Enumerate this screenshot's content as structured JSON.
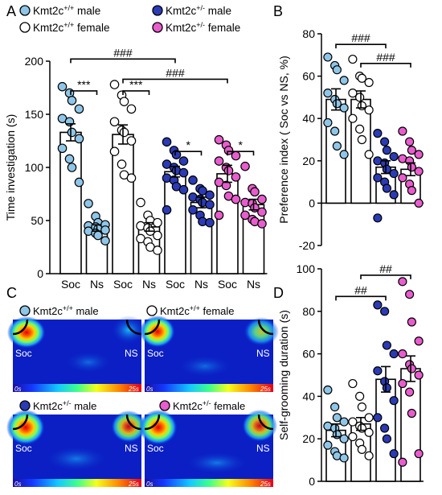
{
  "colors": {
    "wt_male": "#8fc6e8",
    "wt_female": "#ffffff",
    "het_male": "#2b3ab5",
    "het_female": "#e85ccd",
    "bar_fill": "#ffffff",
    "heatmap_low": "#0b1fc4",
    "heatmap_high": "#ff2a00"
  },
  "panels": {
    "A": "A",
    "B": "B",
    "C": "C",
    "D": "D"
  },
  "legend": {
    "items": [
      {
        "key": "wt_male",
        "base": "Kmt2c",
        "sup": "+/+",
        "suffix": " male"
      },
      {
        "key": "het_male",
        "base": "Kmt2c",
        "sup": "+/-",
        "suffix": " male"
      },
      {
        "key": "wt_female",
        "base": "Kmt2c",
        "sup": "+/+",
        "suffix": " female"
      },
      {
        "key": "het_female",
        "base": "Kmt2c",
        "sup": "+/-",
        "suffix": " female"
      }
    ]
  },
  "heatmap": {
    "soc_label": "Soc",
    "ns_label": "NS",
    "scale_min": "0s",
    "scale_max": "25s",
    "tiles": [
      {
        "key": "wt_male",
        "base": "Kmt2c",
        "sup": "+/+",
        "suffix": " male"
      },
      {
        "key": "wt_female",
        "base": "Kmt2c",
        "sup": "+/+",
        "suffix": " female"
      },
      {
        "key": "het_male",
        "base": "Kmt2c",
        "sup": "+/-",
        "suffix": " male"
      },
      {
        "key": "het_female",
        "base": "Kmt2c",
        "sup": "+/-",
        "suffix": " female"
      }
    ]
  },
  "chart_data": [
    {
      "panel": "A",
      "type": "bar",
      "ylabel": "Time investigation (s)",
      "ylim": [
        0,
        200
      ],
      "yticks": [
        0,
        50,
        100,
        150,
        200
      ],
      "categories": [
        "Soc",
        "Ns",
        "Soc",
        "Ns",
        "Soc",
        "Ns",
        "Soc",
        "Ns"
      ],
      "groups": [
        "wt_male",
        "wt_male",
        "wt_female",
        "wt_female",
        "het_male",
        "het_male",
        "het_female",
        "het_female"
      ],
      "values": [
        133,
        43,
        131,
        44,
        96,
        67,
        94,
        65
      ],
      "errors": [
        8,
        3,
        9,
        4,
        5,
        5,
        8,
        5
      ],
      "points": [
        [
          176,
          170,
          163,
          155,
          146,
          143,
          133,
          127,
          118,
          108,
          100,
          86
        ],
        [
          66,
          54,
          48,
          46,
          45,
          44,
          42,
          41,
          40,
          38,
          36,
          31
        ],
        [
          178,
          168,
          162,
          155,
          143,
          135,
          133,
          125,
          115,
          103,
          93,
          90
        ],
        [
          67,
          55,
          50,
          48,
          45,
          43,
          40,
          36,
          33,
          30,
          25,
          22
        ],
        [
          124,
          116,
          112,
          106,
          103,
          100,
          97,
          95,
          90,
          88,
          82,
          79,
          60
        ],
        [
          88,
          80,
          78,
          74,
          72,
          70,
          67,
          65,
          60,
          55,
          49,
          48
        ],
        [
          126,
          121,
          116,
          111,
          106,
          100,
          97,
          91,
          86,
          83,
          73,
          70,
          55
        ],
        [
          101,
          80,
          77,
          70,
          67,
          66,
          62,
          58,
          55,
          51,
          49,
          47
        ]
      ],
      "sig": [
        {
          "from": 0,
          "to": 1,
          "y": 172,
          "label": "***"
        },
        {
          "from": 2,
          "to": 3,
          "y": 172,
          "label": "***"
        },
        {
          "from": 4,
          "to": 5,
          "y": 115,
          "label": "*"
        },
        {
          "from": 6,
          "to": 7,
          "y": 115,
          "label": "*"
        },
        {
          "from": 0,
          "to": 4,
          "y": 202,
          "label": "###"
        },
        {
          "from": 2,
          "to": 6,
          "y": 183,
          "label": "###"
        }
      ]
    },
    {
      "panel": "B",
      "type": "bar",
      "ylabel": "Preference index ( Soc vs NS, %)",
      "ylim": [
        -20,
        80
      ],
      "yticks": [
        -20,
        0,
        20,
        40,
        60,
        80
      ],
      "categories": [
        "",
        "",
        "",
        ""
      ],
      "groups": [
        "wt_male",
        "wt_female",
        "het_male",
        "het_female"
      ],
      "values": [
        49,
        49,
        17,
        16
      ],
      "errors": [
        5,
        4,
        3,
        3
      ],
      "points": [
        [
          69,
          65,
          63,
          58,
          52,
          49,
          47,
          45,
          38,
          34,
          27,
          23
        ],
        [
          68,
          60,
          59,
          57,
          52,
          50,
          46,
          44,
          40,
          35,
          30,
          23
        ],
        [
          33,
          29,
          25,
          22,
          20,
          19,
          16,
          14,
          12,
          10,
          7,
          4,
          -7
        ],
        [
          34,
          29,
          25,
          23,
          21,
          20,
          17,
          15,
          12,
          9,
          6,
          0
        ]
      ],
      "sig": [
        {
          "from": 0,
          "to": 2,
          "y": 75,
          "label": "###"
        },
        {
          "from": 1,
          "to": 3,
          "y": 66,
          "label": "###"
        }
      ]
    },
    {
      "panel": "D",
      "type": "bar",
      "ylabel": "Self-grooming duration (s)",
      "ylim": [
        0,
        100
      ],
      "yticks": [
        0,
        20,
        40,
        60,
        80,
        100
      ],
      "categories": [
        "",
        "",
        "",
        ""
      ],
      "groups": [
        "wt_male",
        "wt_female",
        "het_male",
        "het_female"
      ],
      "values": [
        24,
        27,
        48,
        53
      ],
      "errors": [
        3,
        3,
        6,
        6
      ],
      "points": [
        [
          43,
          35,
          30,
          28,
          26,
          25,
          22,
          20,
          17,
          14,
          12,
          11
        ],
        [
          46,
          40,
          35,
          30,
          28,
          26,
          25,
          23,
          21,
          18,
          15,
          12
        ],
        [
          83,
          80,
          64,
          60,
          52,
          47,
          44,
          38,
          30,
          25,
          20,
          13
        ],
        [
          94,
          88,
          75,
          66,
          60,
          55,
          53,
          50,
          46,
          42,
          32,
          13,
          9
        ]
      ],
      "sig": [
        {
          "from": 0,
          "to": 2,
          "y": 87,
          "label": "##"
        },
        {
          "from": 1,
          "to": 3,
          "y": 97,
          "label": "##"
        }
      ]
    }
  ]
}
